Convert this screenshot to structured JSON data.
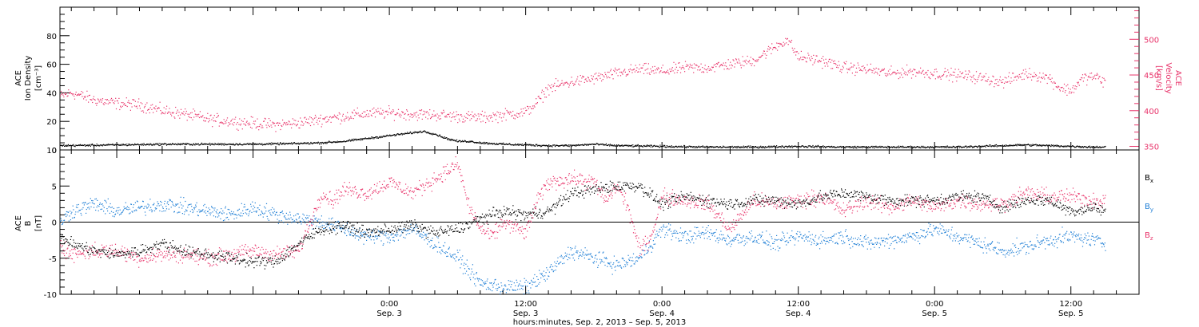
{
  "colors": {
    "black": "#000000",
    "blue": "#1f7fd6",
    "red": "#e8336a"
  },
  "xaxis": {
    "range_hours": [
      -29,
      66
    ],
    "ticks": [
      {
        "h": 0,
        "time": "0:00",
        "day": "Sep. 3"
      },
      {
        "h": 12,
        "time": "12:00",
        "day": "Sep. 3"
      },
      {
        "h": 24,
        "time": "0:00",
        "day": "Sep. 4"
      },
      {
        "h": 36,
        "time": "12:00",
        "day": "Sep. 4"
      },
      {
        "h": 48,
        "time": "0:00",
        "day": "Sep. 5"
      },
      {
        "h": 60,
        "time": "12:00",
        "day": "Sep. 5"
      }
    ],
    "title": "hours:minutes, Sep.  2, 2013 – Sep.  5, 2013"
  },
  "chart_data": [
    {
      "type": "scatter",
      "panel": "top",
      "left_axis": {
        "label_lines": [
          "ACE",
          "Ion Density",
          "[cm⁻³]"
        ],
        "ylim": [
          0,
          100
        ],
        "ticks": [
          0,
          20,
          40,
          60,
          80
        ]
      },
      "right_axis": {
        "label_lines": [
          "ACE",
          "Velocity",
          "[km/s]"
        ],
        "ylim": [
          345,
          545
        ],
        "ticks": [
          350,
          400,
          450,
          500
        ],
        "color": "#e8336a"
      },
      "series": [
        {
          "axis": "left",
          "color": "#000000",
          "x_hours": [
            -29,
            -24,
            -20,
            -16,
            -12,
            -8,
            -6,
            -4,
            -2,
            0,
            2,
            3,
            4,
            5,
            6,
            7,
            8,
            9,
            10,
            12,
            14,
            16,
            18,
            20,
            24,
            28,
            32,
            36,
            40,
            44,
            48,
            50,
            52,
            54,
            56,
            58,
            60,
            62,
            63
          ],
          "y": [
            3,
            3.5,
            4,
            4,
            4,
            4.5,
            5,
            6,
            8,
            10,
            12,
            13,
            11,
            8,
            6,
            6,
            5,
            4.5,
            4,
            3.5,
            3,
            3,
            4,
            3,
            2.5,
            2,
            2,
            2.5,
            2,
            2,
            2,
            2,
            2.5,
            3,
            3.5,
            3,
            2.5,
            2,
            2
          ]
        },
        {
          "axis": "right",
          "color": "#e8336a",
          "x_hours": [
            -29,
            -28,
            -26,
            -24,
            -22,
            -20,
            -18,
            -16,
            -14,
            -12,
            -10,
            -8,
            -6,
            -4,
            -2,
            0,
            2,
            4,
            6,
            8,
            10,
            12,
            13,
            14,
            16,
            18,
            20,
            22,
            24,
            26,
            28,
            30,
            32,
            34,
            35,
            36,
            38,
            40,
            42,
            44,
            46,
            48,
            50,
            52,
            54,
            56,
            58,
            59,
            60,
            61,
            62,
            63
          ],
          "y": [
            420,
            425,
            415,
            410,
            408,
            400,
            395,
            388,
            385,
            382,
            380,
            383,
            388,
            392,
            396,
            397,
            395,
            394,
            392,
            390,
            394,
            398,
            412,
            432,
            440,
            445,
            452,
            458,
            455,
            460,
            460,
            465,
            470,
            490,
            500,
            475,
            470,
            460,
            458,
            452,
            455,
            452,
            450,
            446,
            440,
            452,
            446,
            432,
            428,
            445,
            448,
            440
          ]
        }
      ]
    },
    {
      "type": "scatter",
      "panel": "bottom",
      "left_axis": {
        "label_lines": [
          "ACE",
          "B",
          "[nT]"
        ],
        "ylim": [
          -10,
          10
        ],
        "ticks": [
          -10,
          -5,
          0,
          5,
          10
        ]
      },
      "zero_line": true,
      "series": [
        {
          "name": "Bx",
          "color": "#000000",
          "x_hours": [
            -29,
            -28,
            -26,
            -24,
            -22,
            -20,
            -18,
            -16,
            -14,
            -12,
            -10,
            -8,
            -6,
            -4,
            -2,
            0,
            2,
            4,
            6,
            8,
            10,
            12,
            14,
            16,
            18,
            20,
            22,
            24,
            26,
            28,
            30,
            32,
            34,
            36,
            38,
            40,
            42,
            44,
            46,
            48,
            50,
            52,
            54,
            56,
            58,
            60,
            62,
            63
          ],
          "y": [
            -2,
            -3,
            -4,
            -4.5,
            -4,
            -3,
            -4,
            -4.5,
            -5,
            -5.5,
            -5.5,
            -3,
            -1,
            -0.5,
            -1.5,
            -1,
            -0.5,
            -1.5,
            -1,
            0.5,
            1.5,
            1,
            1.5,
            4,
            4.5,
            5,
            5,
            2.5,
            3.5,
            3,
            2.5,
            3,
            3,
            2.5,
            3.5,
            4,
            3.5,
            3,
            3,
            3,
            3.5,
            3.5,
            2,
            3,
            3,
            1.5,
            2,
            1.5
          ]
        },
        {
          "name": "By",
          "color": "#1f7fd6",
          "x_hours": [
            -29,
            -28,
            -26,
            -24,
            -22,
            -20,
            -18,
            -16,
            -14,
            -12,
            -10,
            -8,
            -6,
            -4,
            -2,
            0,
            2,
            4,
            6,
            8,
            10,
            12,
            14,
            16,
            18,
            20,
            22,
            24,
            26,
            28,
            30,
            32,
            34,
            36,
            38,
            40,
            42,
            44,
            46,
            48,
            50,
            52,
            54,
            56,
            58,
            60,
            62,
            63
          ],
          "y": [
            0,
            1.5,
            2.5,
            1.5,
            2,
            2.5,
            2,
            1.5,
            1,
            2,
            1,
            0.5,
            0,
            -1,
            -2,
            -2,
            -1,
            -3,
            -5,
            -8.5,
            -9,
            -9,
            -7,
            -4,
            -5,
            -6,
            -5,
            -1,
            -2,
            -1.5,
            -2.5,
            -2,
            -3,
            -2,
            -2.5,
            -2,
            -3,
            -2.5,
            -2,
            -1,
            -2,
            -3,
            -4,
            -3.5,
            -2.5,
            -2,
            -2.5,
            -3
          ]
        },
        {
          "name": "Bz",
          "color": "#e8336a",
          "x_hours": [
            -29,
            -28,
            -26,
            -24,
            -22,
            -20,
            -18,
            -16,
            -14,
            -12,
            -10,
            -8,
            -6,
            -5,
            -4,
            -2,
            0,
            2,
            4,
            6,
            7,
            8,
            9,
            10,
            12,
            13,
            14,
            16,
            18,
            19,
            20,
            21,
            22,
            23,
            24,
            26,
            28,
            30,
            32,
            34,
            36,
            38,
            40,
            42,
            44,
            46,
            48,
            50,
            52,
            54,
            56,
            58,
            60,
            62,
            63
          ],
          "y": [
            -3,
            -4.5,
            -4,
            -4,
            -5,
            -4.5,
            -4.5,
            -5,
            -4.5,
            -4,
            -4.5,
            -4,
            4,
            3,
            4.5,
            4,
            5.5,
            4,
            6,
            8,
            2,
            -1,
            -2,
            0,
            -1.5,
            3,
            5.5,
            6,
            5.5,
            3,
            5,
            2,
            -4,
            -2,
            3.5,
            3,
            2.5,
            -1,
            3,
            2.5,
            3,
            3.5,
            1.5,
            3,
            2,
            3,
            2,
            3,
            2.5,
            2.5,
            4,
            3.5,
            3.5,
            3,
            3
          ]
        }
      ],
      "legend": [
        "Bx",
        "By",
        "Bz"
      ]
    }
  ]
}
